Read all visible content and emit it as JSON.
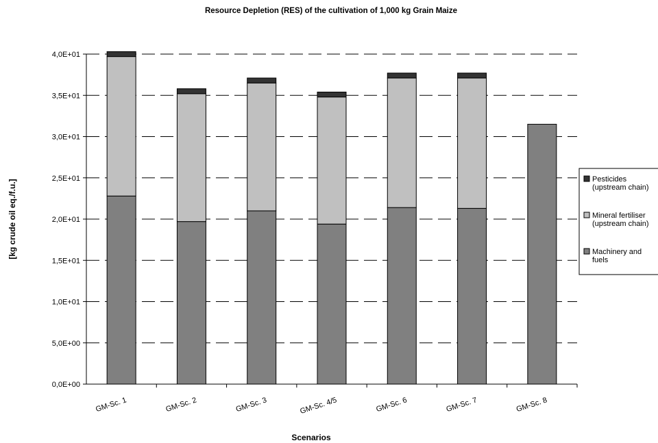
{
  "chart_data": {
    "type": "bar",
    "stacked": true,
    "title": "Resource Depletion (RES) of the cultivation of 1,000 kg Grain Maize",
    "xlabel": "Scenarios",
    "ylabel": "[kg crude oil eq./f.u.]",
    "ylim": [
      0,
      40
    ],
    "yticks": [
      "0,0E+00",
      "5,0E+00",
      "1,0E+01",
      "1,5E+01",
      "2,0E+01",
      "2,5E+01",
      "3,0E+01",
      "3,5E+01",
      "4,0E+01"
    ],
    "grid": "horizontal dashed",
    "legend_position": "right",
    "categories": [
      "GM-Sc. 1",
      "GM-Sc. 2",
      "GM-Sc. 3",
      "GM-Sc. 4/5",
      "GM-Sc. 6",
      "GM-Sc. 7",
      "GM-Sc. 8"
    ],
    "series": [
      {
        "name": "Machinery and fuels",
        "legend_lines": [
          "Machinery and",
          "fuels"
        ],
        "color": "#808080",
        "values": [
          22.8,
          19.7,
          21.0,
          19.4,
          21.4,
          21.3,
          31.5
        ]
      },
      {
        "name": "Mineral fertiliser (upstream chain)",
        "legend_lines": [
          "Mineral fertiliser",
          "(upstream chain)"
        ],
        "color": "#c0c0c0",
        "values": [
          16.9,
          15.5,
          15.5,
          15.4,
          15.7,
          15.8,
          0
        ]
      },
      {
        "name": "Pesticides (upstream chain)",
        "legend_lines": [
          "Pesticides",
          "(upstream chain)"
        ],
        "color": "#333333",
        "values": [
          0.6,
          0.6,
          0.6,
          0.6,
          0.6,
          0.6,
          0
        ]
      }
    ]
  }
}
